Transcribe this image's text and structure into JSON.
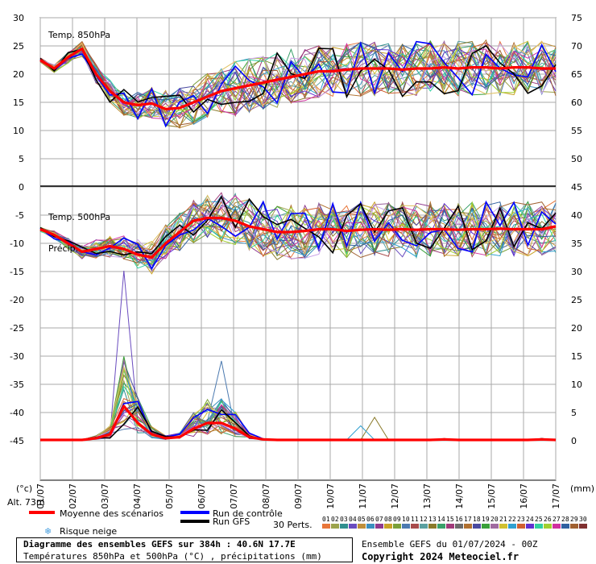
{
  "chart_data": {
    "type": "line",
    "x_dates": [
      "01/07",
      "02/07",
      "03/07",
      "04/07",
      "05/07",
      "06/07",
      "07/07",
      "08/07",
      "09/07",
      "10/07",
      "11/07",
      "12/07",
      "13/07",
      "14/07",
      "15/07",
      "16/07",
      "17/07"
    ],
    "left_axis_label": "(°c)",
    "right_axis_label": "(mm)",
    "left_ticks": [
      30,
      25,
      20,
      15,
      10,
      5,
      0,
      -5,
      -10,
      -15,
      -20,
      -25,
      -30,
      -35,
      -40,
      -45
    ],
    "right_ticks_top": [
      75,
      70,
      65,
      60,
      55,
      50,
      45
    ],
    "right_ticks_bottom": [
      40,
      35,
      30,
      25,
      20,
      15,
      10,
      5,
      0
    ],
    "ylim": [
      -45,
      30
    ],
    "panels": [
      {
        "label": "Temp. 850hPa"
      },
      {
        "label": "Temp. 500hPa"
      },
      {
        "label": "Précip."
      }
    ],
    "series": [
      {
        "name": "Moyenne des scénarios",
        "color": "#ff0000",
        "t850": [
          22.5,
          21,
          23,
          24.5,
          20,
          17,
          15,
          14.5,
          14.8,
          13.8,
          14,
          15,
          16,
          17,
          17.5,
          18,
          18.5,
          19,
          19.5,
          20,
          20.5,
          20.5,
          20.8,
          21,
          21,
          21,
          20.8,
          21,
          21,
          21.2,
          21,
          21.2,
          21.2,
          21,
          21.2,
          21.2,
          21,
          21
        ],
        "t500": [
          -7.5,
          -8.5,
          -10,
          -11.5,
          -11,
          -10.5,
          -11,
          -12,
          -12.5,
          -10,
          -8,
          -6,
          -5.5,
          -5.5,
          -6,
          -7,
          -7.5,
          -8,
          -8,
          -7.8,
          -7.5,
          -7.5,
          -7.8,
          -7.6,
          -7.5,
          -7.6,
          -7.5,
          -7.6,
          -7.5,
          -7.5,
          -7.6,
          -7.5,
          -7.5,
          -7.4,
          -7.5,
          -7.5,
          -7.5,
          -7
        ],
        "precip": [
          0,
          0,
          0,
          0,
          0.3,
          1,
          6,
          3,
          1,
          0.3,
          0.5,
          2,
          3,
          3,
          2,
          0.5,
          0.1,
          0,
          0,
          0,
          0,
          0,
          0,
          0,
          0,
          0,
          0,
          0,
          0,
          0.1,
          0,
          0,
          0,
          0,
          0,
          0,
          0.1,
          0
        ]
      },
      {
        "name": "Run de contrôle",
        "color": "#0000ff"
      },
      {
        "name": "Run GFS",
        "color": "#000000"
      }
    ],
    "perturbations_label": "30 Perts.",
    "perturbation_numbers": [
      "01",
      "02",
      "03",
      "04",
      "05",
      "06",
      "07",
      "08",
      "09",
      "10",
      "11",
      "12",
      "13",
      "14",
      "15",
      "16",
      "17",
      "18",
      "19",
      "20",
      "21",
      "22",
      "23",
      "24",
      "25",
      "26",
      "27",
      "28",
      "29",
      "30"
    ],
    "perturbation_colors": [
      "#e8763a",
      "#9ca34c",
      "#2f8f8f",
      "#6a4cbf",
      "#bf8f3a",
      "#3a8fbf",
      "#8f3a8f",
      "#c9a227",
      "#7aa03a",
      "#4c7ab0",
      "#a84c4c",
      "#5aa0a0",
      "#8a7a2a",
      "#3aa06a",
      "#a03a7a",
      "#6a6a6a",
      "#b07030",
      "#4a4aa0",
      "#3aa03a",
      "#a06aa0",
      "#d0c030",
      "#30a0d0",
      "#d06030",
      "#6030d0",
      "#30d0a0",
      "#a0d030",
      "#d030a0",
      "#3060a0",
      "#a06030",
      "#803030"
    ],
    "ensemble_colors": [
      "#e8763a",
      "#9ca34c",
      "#2f8f8f",
      "#6a4cbf",
      "#bf8f3a",
      "#3a8fbf",
      "#8f3a8f",
      "#c9a227",
      "#7aa03a",
      "#4c7ab0",
      "#a84c4c",
      "#5aa0a0",
      "#8a7a2a",
      "#3aa06a",
      "#a03a7a",
      "#b07030",
      "#4a4aa0",
      "#3aa03a",
      "#a06aa0",
      "#d0c030",
      "#30a0d0",
      "#d06030",
      "#6030d0",
      "#30d0a0",
      "#a0d030",
      "#d030a0",
      "#3060a0",
      "#a06030",
      "#c8a0e8",
      "#e0c060"
    ]
  },
  "labels": {
    "alt": "Alt. 73m",
    "risque_neige": "Risque neige",
    "footer_title": "Diagramme des ensembles GEFS sur 384h : 40.6N 17.7E",
    "footer_subtitle": "Températures 850hPa et 500hPa (°C) , précipitations (mm)",
    "ensemble_info": "Ensemble GEFS du 01/07/2024 - 00Z",
    "copyright": "Copyright 2024 Meteociel.fr"
  },
  "colors": {
    "grid": "#a8a8a8",
    "mean": "#ff0000",
    "control": "#0000ff",
    "gfs": "#000000",
    "snow_icon": "#4aa0e0"
  }
}
